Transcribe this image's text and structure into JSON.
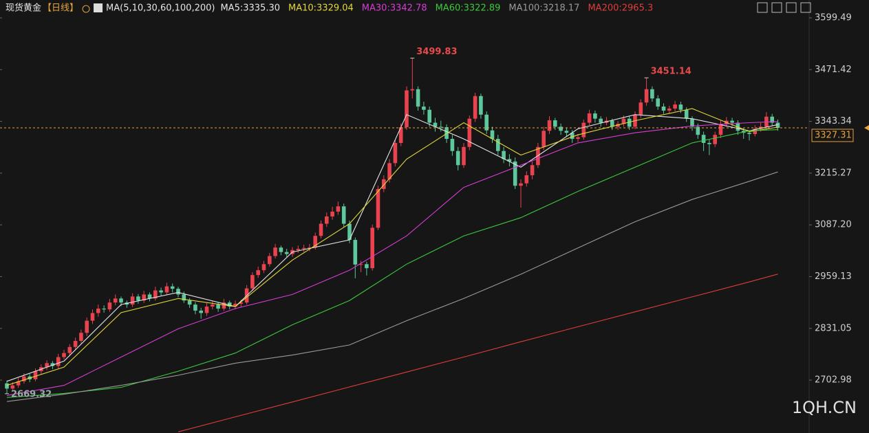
{
  "chart_data": {
    "type": "candlestick",
    "title": "现货黄金",
    "period": "【日线】",
    "ma_title": "MA(5,10,30,60,100,200)",
    "up_color": "#e8434f",
    "down_color": "#5cc89c",
    "ylim": [
      2572.1,
      3643.7
    ],
    "yticks": [
      3599.49,
      3471.42,
      3343.34,
      3215.27,
      {
        "value": 3087.2,
        "label": "3087.20"
      },
      2959.13,
      2831.05,
      2702.98
    ],
    "watermark": "1QH.CN",
    "annotations": [
      {
        "index": 71,
        "field": 1
      },
      {
        "index": 112,
        "field": 1
      },
      {
        "index": 0,
        "field": 2
      }
    ],
    "ohlc": [
      [
        2695,
        2702,
        2669.32,
        2682
      ],
      [
        2682,
        2698,
        2676,
        2690
      ],
      [
        2690,
        2708,
        2684,
        2700
      ],
      [
        2700,
        2720,
        2694,
        2712
      ],
      [
        2712,
        2718,
        2698,
        2705
      ],
      [
        2705,
        2732,
        2700,
        2725
      ],
      [
        2725,
        2742,
        2718,
        2735
      ],
      [
        2735,
        2752,
        2728,
        2745
      ],
      [
        2745,
        2750,
        2730,
        2738
      ],
      [
        2738,
        2768,
        2732,
        2760
      ],
      [
        2760,
        2778,
        2754,
        2770
      ],
      [
        2770,
        2792,
        2762,
        2785
      ],
      [
        2785,
        2808,
        2778,
        2800
      ],
      [
        2800,
        2828,
        2794,
        2820
      ],
      [
        2820,
        2858,
        2812,
        2850
      ],
      [
        2850,
        2878,
        2842,
        2869
      ],
      [
        2869,
        2890,
        2860,
        2880
      ],
      [
        2880,
        2888,
        2870,
        2878
      ],
      [
        2878,
        2904,
        2872,
        2895
      ],
      [
        2895,
        2915,
        2888,
        2905
      ],
      [
        2905,
        2910,
        2886,
        2895
      ],
      [
        2895,
        2900,
        2882,
        2890
      ],
      [
        2890,
        2918,
        2884,
        2910
      ],
      [
        2910,
        2916,
        2892,
        2900
      ],
      [
        2900,
        2924,
        2894,
        2915
      ],
      [
        2915,
        2920,
        2898,
        2905
      ],
      [
        2905,
        2934,
        2900,
        2925
      ],
      [
        2925,
        2932,
        2912,
        2920
      ],
      [
        2920,
        2944,
        2914,
        2935
      ],
      [
        2935,
        2942,
        2920,
        2929
      ],
      [
        2929,
        2934,
        2908,
        2915
      ],
      [
        2915,
        2922,
        2894,
        2900
      ],
      [
        2900,
        2906,
        2882,
        2890
      ],
      [
        2890,
        2896,
        2866,
        2875
      ],
      [
        2875,
        2882,
        2855,
        2869
      ],
      [
        2869,
        2894,
        2862,
        2885
      ],
      [
        2885,
        2898,
        2878,
        2890
      ],
      [
        2890,
        2896,
        2872,
        2880
      ],
      [
        2880,
        2904,
        2874,
        2895
      ],
      [
        2895,
        2900,
        2878,
        2885
      ],
      [
        2885,
        2900,
        2878,
        2892
      ],
      [
        2892,
        2902,
        2884,
        2895
      ],
      [
        2895,
        2938,
        2890,
        2930
      ],
      [
        2930,
        2970,
        2924,
        2963
      ],
      [
        2963,
        2984,
        2956,
        2975
      ],
      [
        2975,
        2998,
        2968,
        2990
      ],
      [
        2990,
        3018,
        2984,
        3010
      ],
      [
        3010,
        3040,
        3004,
        3031
      ],
      [
        3031,
        3036,
        3012,
        3020
      ],
      [
        3020,
        3028,
        3008,
        3015
      ],
      [
        3015,
        3032,
        3008,
        3025
      ],
      [
        3025,
        3036,
        3018,
        3028
      ],
      [
        3028,
        3038,
        3020,
        3030
      ],
      [
        3030,
        3040,
        3022,
        3031
      ],
      [
        3031,
        3068,
        3026,
        3060
      ],
      [
        3060,
        3098,
        3054,
        3090
      ],
      [
        3090,
        3118,
        3082,
        3108
      ],
      [
        3108,
        3132,
        3100,
        3120
      ],
      [
        3120,
        3145,
        3112,
        3133
      ],
      [
        3133,
        3140,
        3082,
        3090
      ],
      [
        3090,
        3098,
        3042,
        3050
      ],
      [
        3050,
        3056,
        2955,
        2989
      ],
      [
        2989,
        2998,
        2970,
        2990
      ],
      [
        2990,
        2996,
        2962,
        2980
      ],
      [
        2980,
        3088,
        2974,
        3080
      ],
      [
        3080,
        3184,
        3074,
        3176
      ],
      [
        3176,
        3210,
        3168,
        3200
      ],
      [
        3200,
        3250,
        3192,
        3240
      ],
      [
        3240,
        3298,
        3232,
        3290
      ],
      [
        3290,
        3338,
        3282,
        3329
      ],
      [
        3329,
        3430,
        3322,
        3420
      ],
      [
        3420,
        3499.83,
        3400,
        3423
      ],
      [
        3423,
        3430,
        3370,
        3380
      ],
      [
        3380,
        3392,
        3360,
        3372
      ],
      [
        3372,
        3380,
        3330,
        3340
      ],
      [
        3340,
        3352,
        3318,
        3330
      ],
      [
        3330,
        3345,
        3318,
        3329
      ],
      [
        3329,
        3336,
        3290,
        3300
      ],
      [
        3300,
        3310,
        3258,
        3270
      ],
      [
        3270,
        3280,
        3222,
        3235
      ],
      [
        3235,
        3290,
        3228,
        3280
      ],
      [
        3280,
        3358,
        3272,
        3350
      ],
      [
        3350,
        3414,
        3342,
        3406
      ],
      [
        3406,
        3412,
        3350,
        3360
      ],
      [
        3360,
        3368,
        3312,
        3321
      ],
      [
        3321,
        3330,
        3290,
        3300
      ],
      [
        3300,
        3310,
        3260,
        3270
      ],
      [
        3270,
        3280,
        3240,
        3250
      ],
      [
        3250,
        3262,
        3232,
        3244
      ],
      [
        3244,
        3254,
        3176,
        3184
      ],
      [
        3184,
        3200,
        3130,
        3190
      ],
      [
        3190,
        3220,
        3182,
        3210
      ],
      [
        3210,
        3244,
        3200,
        3235
      ],
      [
        3235,
        3290,
        3228,
        3280
      ],
      [
        3280,
        3330,
        3272,
        3320
      ],
      [
        3320,
        3356,
        3312,
        3346
      ],
      [
        3346,
        3352,
        3322,
        3330
      ],
      [
        3330,
        3338,
        3310,
        3320
      ],
      [
        3320,
        3328,
        3306,
        3315
      ],
      [
        3315,
        3322,
        3290,
        3300
      ],
      [
        3300,
        3312,
        3292,
        3304
      ],
      [
        3304,
        3348,
        3298,
        3340
      ],
      [
        3340,
        3372,
        3334,
        3363
      ],
      [
        3363,
        3370,
        3340,
        3350
      ],
      [
        3350,
        3356,
        3330,
        3340
      ],
      [
        3340,
        3354,
        3334,
        3345
      ],
      [
        3345,
        3350,
        3322,
        3330
      ],
      [
        3330,
        3344,
        3322,
        3337
      ],
      [
        3337,
        3358,
        3330,
        3350
      ],
      [
        3350,
        3356,
        3322,
        3330
      ],
      [
        3330,
        3368,
        3324,
        3360
      ],
      [
        3360,
        3398,
        3352,
        3390
      ],
      [
        3390,
        3451.14,
        3382,
        3423
      ],
      [
        3423,
        3430,
        3392,
        3400
      ],
      [
        3400,
        3408,
        3372,
        3380
      ],
      [
        3380,
        3388,
        3362,
        3370
      ],
      [
        3370,
        3382,
        3362,
        3375
      ],
      [
        3375,
        3394,
        3368,
        3385
      ],
      [
        3385,
        3392,
        3364,
        3372
      ],
      [
        3372,
        3378,
        3342,
        3350
      ],
      [
        3350,
        3356,
        3320,
        3330
      ],
      [
        3330,
        3338,
        3300,
        3310
      ],
      [
        3310,
        3318,
        3270,
        3290
      ],
      [
        3290,
        3298,
        3260,
        3287
      ],
      [
        3287,
        3318,
        3280,
        3310
      ],
      [
        3310,
        3346,
        3302,
        3337
      ],
      [
        3337,
        3354,
        3330,
        3345
      ],
      [
        3345,
        3352,
        3332,
        3340
      ],
      [
        3340,
        3346,
        3310,
        3320
      ],
      [
        3320,
        3326,
        3300,
        3315
      ],
      [
        3315,
        3320,
        3296,
        3312
      ],
      [
        3312,
        3334,
        3306,
        3325
      ],
      [
        3325,
        3340,
        3318,
        3330
      ],
      [
        3330,
        3366,
        3322,
        3355
      ],
      [
        3355,
        3362,
        3332,
        3340
      ],
      [
        3340,
        3348,
        3320,
        3327.31
      ]
    ],
    "series": [
      {
        "label": "MA5:3335.30",
        "color": "#e6e6e6",
        "x": [
          0,
          10,
          20,
          30,
          40,
          50,
          60,
          70,
          80,
          90,
          100,
          110,
          120,
          130,
          135
        ],
        "values": [
          2700,
          2750,
          2890,
          2920,
          2885,
          3020,
          3050,
          3360,
          3300,
          3230,
          3325,
          3360,
          3350,
          3320,
          3335.3
        ]
      },
      {
        "label": "MA10:3329.04",
        "color": "#e3d83a",
        "x": [
          0,
          10,
          20,
          30,
          40,
          50,
          60,
          70,
          80,
          90,
          100,
          110,
          120,
          130,
          135
        ],
        "values": [
          2690,
          2735,
          2870,
          2905,
          2885,
          3000,
          3090,
          3250,
          3340,
          3260,
          3310,
          3345,
          3375,
          3318,
          3329.04
        ]
      },
      {
        "label": "MA30:3342.78",
        "color": "#d83cd8",
        "x": [
          0,
          10,
          20,
          30,
          40,
          50,
          60,
          70,
          80,
          90,
          100,
          110,
          120,
          130,
          135
        ],
        "values": [
          2665,
          2690,
          2760,
          2830,
          2880,
          2915,
          2975,
          3060,
          3180,
          3235,
          3290,
          3315,
          3332,
          3340,
          3342.78
        ]
      },
      {
        "label": "MA60:3322.89",
        "color": "#3cc83c",
        "x": [
          0,
          10,
          20,
          30,
          40,
          50,
          60,
          70,
          80,
          90,
          100,
          110,
          120,
          130,
          135
        ],
        "values": [
          2660,
          2670,
          2685,
          2725,
          2770,
          2840,
          2900,
          2990,
          3060,
          3105,
          3170,
          3230,
          3290,
          3320,
          3322.89
        ]
      },
      {
        "label": "MA100:3218.17",
        "color": "#9a9a9a",
        "x": [
          0,
          10,
          20,
          30,
          40,
          50,
          60,
          70,
          80,
          90,
          100,
          110,
          120,
          130,
          135
        ],
        "values": [
          2650,
          2668,
          2690,
          2715,
          2745,
          2765,
          2790,
          2850,
          2905,
          2965,
          3030,
          3095,
          3150,
          3195,
          3218.17
        ]
      },
      {
        "label": "MA200:2965.3",
        "color": "#e03c3c",
        "x": [
          30,
          40,
          50,
          60,
          70,
          80,
          90,
          100,
          110,
          120,
          130,
          135
        ],
        "values": [
          2575,
          2612,
          2649,
          2686,
          2723,
          2760,
          2798,
          2835,
          2872,
          2909,
          2946,
          2965.3
        ]
      }
    ]
  }
}
